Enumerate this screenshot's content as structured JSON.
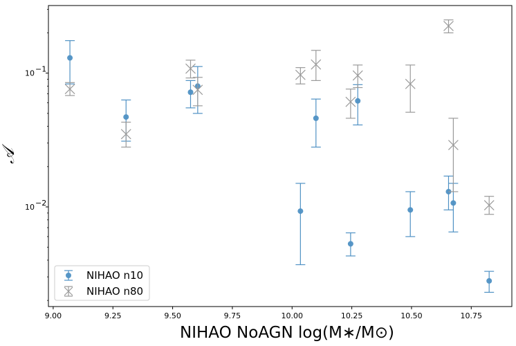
{
  "chart_data": {
    "type": "scatter",
    "title": "",
    "xlabel": "NIHAO NoAGN log(M∗/M⊙)",
    "ylabel": "𝒜",
    "xlim": [
      8.98,
      10.92
    ],
    "ylim": [
      0.0018,
      0.32
    ],
    "yscale": "log",
    "grid": false,
    "legend_position": "lower-left",
    "x_ticks": [
      "9.00",
      "9.25",
      "9.50",
      "9.75",
      "10.00",
      "10.25",
      "10.50",
      "10.75"
    ],
    "x_tick_values": [
      9.0,
      9.25,
      9.5,
      9.75,
      10.0,
      10.25,
      10.5,
      10.75
    ],
    "y_ticks": [
      {
        "value": 0.01,
        "base": "10",
        "exp": "−2"
      },
      {
        "value": 0.1,
        "base": "10",
        "exp": "−1"
      }
    ],
    "series": [
      {
        "name": "NIHAO n10",
        "marker": "circle",
        "color": "#4f91c4",
        "points": [
          {
            "x": 9.07,
            "y": 0.13,
            "lo": 0.083,
            "hi": 0.175
          },
          {
            "x": 9.305,
            "y": 0.047,
            "lo": 0.031,
            "hi": 0.063
          },
          {
            "x": 9.575,
            "y": 0.072,
            "lo": 0.055,
            "hi": 0.088
          },
          {
            "x": 9.605,
            "y": 0.08,
            "lo": 0.05,
            "hi": 0.112
          },
          {
            "x": 10.035,
            "y": 0.0093,
            "lo": 0.0037,
            "hi": 0.015
          },
          {
            "x": 10.1,
            "y": 0.046,
            "lo": 0.028,
            "hi": 0.064
          },
          {
            "x": 10.245,
            "y": 0.0053,
            "lo": 0.0043,
            "hi": 0.0064
          },
          {
            "x": 10.275,
            "y": 0.062,
            "lo": 0.041,
            "hi": 0.082
          },
          {
            "x": 10.495,
            "y": 0.0095,
            "lo": 0.006,
            "hi": 0.013
          },
          {
            "x": 10.655,
            "y": 0.013,
            "lo": 0.0095,
            "hi": 0.017
          },
          {
            "x": 10.675,
            "y": 0.0107,
            "lo": 0.0065,
            "hi": 0.015
          },
          {
            "x": 10.825,
            "y": 0.0028,
            "lo": 0.0023,
            "hi": 0.0033
          }
        ]
      },
      {
        "name": "NIHAO n80",
        "marker": "x",
        "color": "#9a9a9a",
        "points": [
          {
            "x": 9.07,
            "y": 0.076,
            "lo": 0.068,
            "hi": 0.085
          },
          {
            "x": 9.305,
            "y": 0.035,
            "lo": 0.028,
            "hi": 0.043
          },
          {
            "x": 9.575,
            "y": 0.108,
            "lo": 0.092,
            "hi": 0.125
          },
          {
            "x": 9.605,
            "y": 0.075,
            "lo": 0.057,
            "hi": 0.093
          },
          {
            "x": 10.035,
            "y": 0.097,
            "lo": 0.083,
            "hi": 0.11
          },
          {
            "x": 10.1,
            "y": 0.116,
            "lo": 0.088,
            "hi": 0.148
          },
          {
            "x": 10.245,
            "y": 0.061,
            "lo": 0.046,
            "hi": 0.076
          },
          {
            "x": 10.275,
            "y": 0.096,
            "lo": 0.078,
            "hi": 0.115
          },
          {
            "x": 10.495,
            "y": 0.083,
            "lo": 0.051,
            "hi": 0.115
          },
          {
            "x": 10.655,
            "y": 0.225,
            "lo": 0.2,
            "hi": 0.25
          },
          {
            "x": 10.675,
            "y": 0.029,
            "lo": 0.013,
            "hi": 0.046
          },
          {
            "x": 10.825,
            "y": 0.0103,
            "lo": 0.0088,
            "hi": 0.012
          }
        ]
      }
    ]
  }
}
